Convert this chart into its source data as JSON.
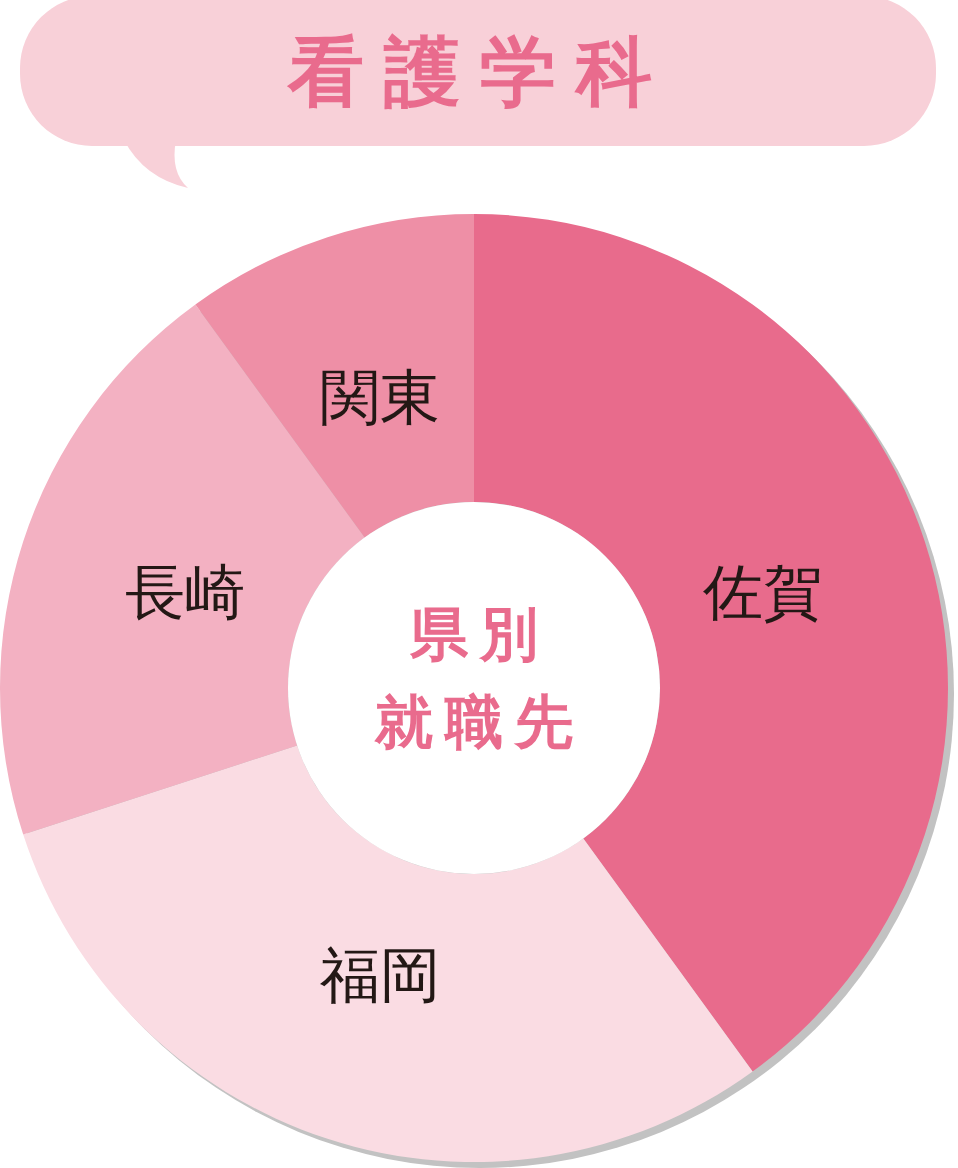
{
  "chart_data": {
    "type": "donut",
    "title": "看護学科",
    "subtitle": "県別就職先",
    "categories": [
      "佐賀",
      "福岡",
      "長崎",
      "関東"
    ],
    "values": [
      40,
      30,
      20,
      10
    ],
    "colors": [
      "#e86b8c",
      "#fadce3",
      "#f3b1c2",
      "#ee8fa6"
    ]
  }
}
